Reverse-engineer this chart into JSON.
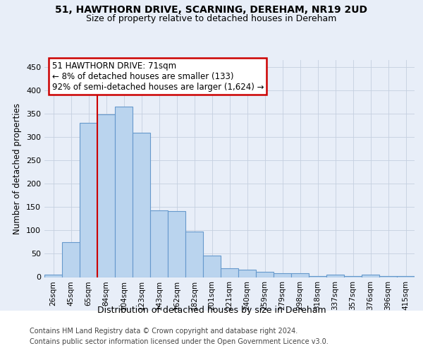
{
  "title1": "51, HAWTHORN DRIVE, SCARNING, DEREHAM, NR19 2UD",
  "title2": "Size of property relative to detached houses in Dereham",
  "xlabel": "Distribution of detached houses by size in Dereham",
  "ylabel": "Number of detached properties",
  "categories": [
    "26sqm",
    "45sqm",
    "65sqm",
    "84sqm",
    "104sqm",
    "123sqm",
    "143sqm",
    "162sqm",
    "182sqm",
    "201sqm",
    "221sqm",
    "240sqm",
    "259sqm",
    "279sqm",
    "298sqm",
    "318sqm",
    "337sqm",
    "357sqm",
    "376sqm",
    "396sqm",
    "415sqm"
  ],
  "values": [
    5,
    75,
    330,
    348,
    365,
    310,
    143,
    142,
    97,
    46,
    19,
    16,
    11,
    9,
    9,
    2,
    5,
    2,
    5,
    2,
    2
  ],
  "bar_color": "#bad4ee",
  "bar_edge_color": "#6699cc",
  "vline_color": "#cc0000",
  "vline_pos": 2.5,
  "annotation_text": "51 HAWTHORN DRIVE: 71sqm\n← 8% of detached houses are smaller (133)\n92% of semi-detached houses are larger (1,624) →",
  "annotation_box_color": "#ffffff",
  "annotation_box_edge": "#cc0000",
  "footer1": "Contains HM Land Registry data © Crown copyright and database right 2024.",
  "footer2": "Contains public sector information licensed under the Open Government Licence v3.0.",
  "bg_color": "#e8eef8",
  "plot_bg_color": "#e8eef8",
  "footer_bg": "#ffffff",
  "ylim": [
    0,
    465
  ],
  "yticks": [
    0,
    50,
    100,
    150,
    200,
    250,
    300,
    350,
    400,
    450
  ]
}
